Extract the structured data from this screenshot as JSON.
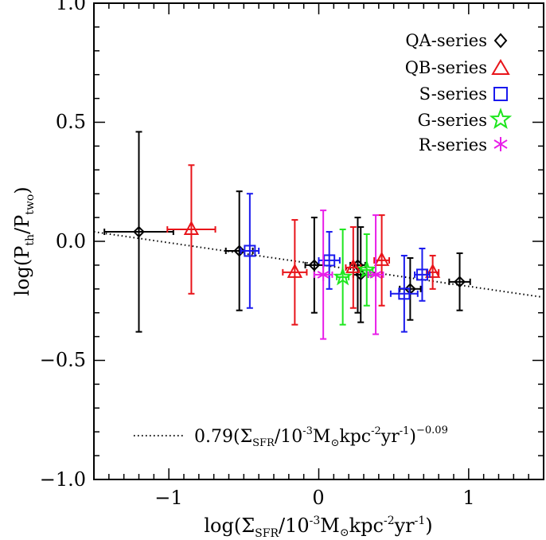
{
  "chart_data": {
    "type": "scatter",
    "title": "",
    "xlabel": {
      "pre": "log(Σ",
      "sub": "SFR",
      "mid": "/10",
      "sup1": "-3",
      "unit": "M",
      "sun": "⊙",
      "kpc": "kpc",
      "sup2": "-2",
      "yr": "yr",
      "sup3": "-1",
      "post": ")"
    },
    "ylabel": {
      "pre": "log(P",
      "sub1": "th",
      "mid": "/P",
      "sub2": "two",
      "post": ")"
    },
    "xlim": [
      -1.5,
      1.5
    ],
    "ylim": [
      -1.0,
      1.0
    ],
    "xticks": [
      -1,
      0,
      1
    ],
    "xtick_labels": [
      "−1",
      "0",
      "1"
    ],
    "yticks": [
      -1.0,
      -0.5,
      0.0,
      0.5,
      1.0
    ],
    "ytick_labels": [
      "−1.0",
      "−0.5",
      "0.0",
      "0.5",
      "1.0"
    ],
    "series": [
      {
        "name": "QA-series",
        "marker": "diamond",
        "color": "#000000",
        "points": [
          {
            "x": -1.2,
            "y": 0.04,
            "xerr": 0.23,
            "yerr": 0.42
          },
          {
            "x": -0.53,
            "y": -0.04,
            "xerr": 0.09,
            "yerr": 0.25
          },
          {
            "x": -0.03,
            "y": -0.1,
            "xerr": 0.06,
            "yerr": 0.2
          },
          {
            "x": 0.26,
            "y": -0.1,
            "xerr": 0.05,
            "yerr": 0.2
          },
          {
            "x": 0.28,
            "y": -0.14,
            "xerr": 0.05,
            "yerr": 0.2
          },
          {
            "x": 0.61,
            "y": -0.2,
            "xerr": 0.07,
            "yerr": 0.13
          },
          {
            "x": 0.94,
            "y": -0.17,
            "xerr": 0.07,
            "yerr": 0.12
          }
        ]
      },
      {
        "name": "QB-series",
        "marker": "triangle",
        "color": "#e8141a",
        "points": [
          {
            "x": -0.85,
            "y": 0.05,
            "xerr": 0.16,
            "yerr": 0.27
          },
          {
            "x": -0.16,
            "y": -0.13,
            "xerr": 0.08,
            "yerr": 0.22
          },
          {
            "x": 0.23,
            "y": -0.11,
            "xerr": 0.05,
            "yerr": 0.17
          },
          {
            "x": 0.42,
            "y": -0.08,
            "xerr": 0.05,
            "yerr": 0.19
          },
          {
            "x": 0.76,
            "y": -0.13,
            "xerr": 0.04,
            "yerr": 0.07
          }
        ]
      },
      {
        "name": "S-series",
        "marker": "square",
        "color": "#1a1aee",
        "points": [
          {
            "x": -0.46,
            "y": -0.04,
            "xerr": 0.06,
            "yerr": 0.24
          },
          {
            "x": 0.07,
            "y": -0.08,
            "xerr": 0.07,
            "yerr": 0.12
          },
          {
            "x": 0.57,
            "y": -0.22,
            "xerr": 0.09,
            "yerr": 0.16
          },
          {
            "x": 0.69,
            "y": -0.14,
            "xerr": 0.05,
            "yerr": 0.11
          }
        ]
      },
      {
        "name": "G-series",
        "marker": "star",
        "color": "#1ee61e",
        "points": [
          {
            "x": 0.16,
            "y": -0.15,
            "xerr": 0.04,
            "yerr": 0.2
          },
          {
            "x": 0.32,
            "y": -0.12,
            "xerr": 0.04,
            "yerr": 0.15
          }
        ]
      },
      {
        "name": "R-series",
        "marker": "asterisk",
        "color": "#e81ee8",
        "points": [
          {
            "x": 0.03,
            "y": -0.14,
            "xerr": 0.06,
            "yerr": 0.27
          },
          {
            "x": 0.38,
            "y": -0.14,
            "xerr": 0.05,
            "yerr": 0.25
          }
        ]
      }
    ],
    "fit_line": {
      "style": "dotted",
      "points": [
        [
          -1.5,
          0.04
        ],
        [
          1.5,
          -0.235
        ]
      ],
      "label": {
        "pre": "0.79(Σ",
        "sub": "SFR",
        "mid": "/10",
        "sup1": "-3",
        "unit": "M",
        "sun": "⊙",
        "kpc": "kpc",
        "sup2": "-2",
        "yr": "yr",
        "sup3": "-1",
        "post": ")",
        "sup4": "−0.09"
      }
    },
    "legend_position": "top-right"
  }
}
